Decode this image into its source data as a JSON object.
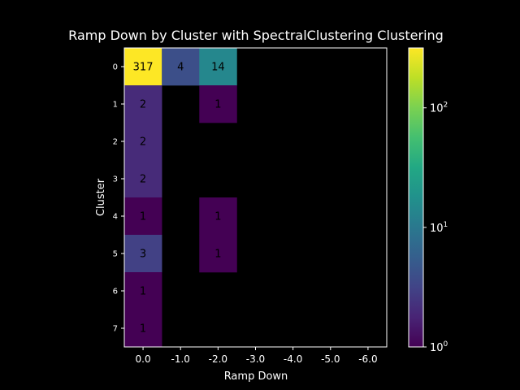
{
  "chart_data": {
    "type": "heatmap",
    "title": "Ramp Down by Cluster with SpectralClustering Clustering",
    "xlabel": "Ramp Down",
    "ylabel": "Cluster",
    "x_categories": [
      "0.0",
      "-1.0",
      "-2.0",
      "-3.0",
      "-4.0",
      "-5.0",
      "-6.0"
    ],
    "y_categories": [
      "0",
      "1",
      "2",
      "3",
      "4",
      "5",
      "6",
      "7"
    ],
    "values": [
      [
        317,
        4,
        14,
        null,
        null,
        null,
        null
      ],
      [
        2,
        null,
        1,
        null,
        null,
        null,
        null
      ],
      [
        2,
        null,
        null,
        null,
        null,
        null,
        null
      ],
      [
        2,
        null,
        null,
        null,
        null,
        null,
        null
      ],
      [
        1,
        null,
        1,
        null,
        null,
        null,
        null
      ],
      [
        3,
        null,
        1,
        null,
        null,
        null,
        null
      ],
      [
        1,
        null,
        null,
        null,
        null,
        null,
        null
      ],
      [
        1,
        null,
        null,
        null,
        null,
        null,
        null
      ]
    ],
    "colorbar": {
      "scale": "log",
      "colormap": "viridis",
      "range": [
        1,
        317
      ],
      "ticks": [
        {
          "value": 1,
          "base": "10",
          "exp": "0"
        },
        {
          "value": 10,
          "base": "10",
          "exp": "1"
        },
        {
          "value": 100,
          "base": "10",
          "exp": "2"
        }
      ]
    },
    "colors": {
      "background": "#000000",
      "text": "#ffffff",
      "cell_text": "#000000"
    }
  }
}
